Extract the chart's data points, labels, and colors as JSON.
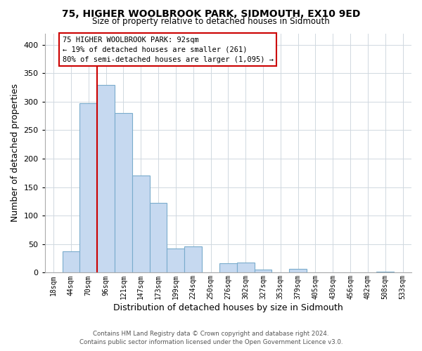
{
  "title": "75, HIGHER WOOLBROOK PARK, SIDMOUTH, EX10 9ED",
  "subtitle": "Size of property relative to detached houses in Sidmouth",
  "xlabel": "Distribution of detached houses by size in Sidmouth",
  "ylabel": "Number of detached properties",
  "bin_labels": [
    "18sqm",
    "44sqm",
    "70sqm",
    "96sqm",
    "121sqm",
    "147sqm",
    "173sqm",
    "199sqm",
    "224sqm",
    "250sqm",
    "276sqm",
    "302sqm",
    "327sqm",
    "353sqm",
    "379sqm",
    "405sqm",
    "430sqm",
    "456sqm",
    "482sqm",
    "508sqm",
    "533sqm"
  ],
  "bar_heights": [
    0,
    37,
    297,
    330,
    280,
    170,
    123,
    42,
    46,
    0,
    17,
    18,
    5,
    0,
    7,
    0,
    0,
    0,
    0,
    2,
    0
  ],
  "bar_color": "#c6d9f0",
  "bar_edge_color": "#7aaccc",
  "vline_index": 3,
  "vline_color": "#cc0000",
  "annotation_title": "75 HIGHER WOOLBROOK PARK: 92sqm",
  "annotation_line1": "← 19% of detached houses are smaller (261)",
  "annotation_line2": "80% of semi-detached houses are larger (1,095) →",
  "annotation_box_color": "#ffffff",
  "annotation_box_edge": "#cc0000",
  "ylim": [
    0,
    420
  ],
  "yticks": [
    0,
    50,
    100,
    150,
    200,
    250,
    300,
    350,
    400
  ],
  "footer_line1": "Contains HM Land Registry data © Crown copyright and database right 2024.",
  "footer_line2": "Contains public sector information licensed under the Open Government Licence v3.0.",
  "bg_color": "#ffffff",
  "plot_bg_color": "#ffffff",
  "grid_color": "#d0d8e0"
}
